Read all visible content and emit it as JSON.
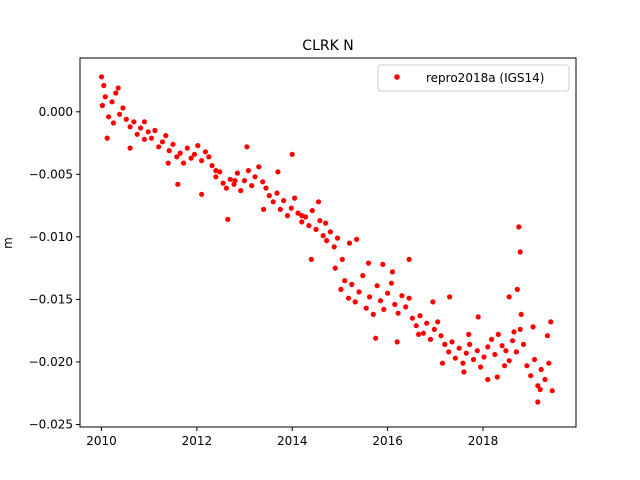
{
  "chart_data": {
    "type": "scatter",
    "title": "CLRK N",
    "xlabel": "",
    "ylabel": "m",
    "xlim": [
      2009.55,
      2019.95
    ],
    "ylim": [
      -0.0252,
      0.0043
    ],
    "xticks": [
      2010,
      2012,
      2014,
      2016,
      2018
    ],
    "xtick_labels": [
      "2010",
      "2012",
      "2014",
      "2016",
      "2018"
    ],
    "yticks": [
      0.0,
      -0.005,
      -0.01,
      -0.015,
      -0.02,
      -0.025
    ],
    "ytick_labels": [
      "0.000",
      "−0.005",
      "−0.010",
      "−0.015",
      "−0.020",
      "−0.025"
    ],
    "grid": false,
    "legend_position": "upper right",
    "series": [
      {
        "name": "repro2018a (IGS14)",
        "color": "#ff0000",
        "marker": "circle",
        "x": [
          2010.02,
          2010.08,
          2010.15,
          2010.22,
          2010.3,
          2010.38,
          2010.45,
          2010.52,
          2010.6,
          2010.68,
          2010.75,
          2010.82,
          2010.9,
          2010.98,
          2011.05,
          2011.12,
          2011.2,
          2011.28,
          2011.35,
          2011.42,
          2011.5,
          2011.58,
          2011.65,
          2011.72,
          2011.8,
          2011.88,
          2011.95,
          2012.02,
          2012.1,
          2012.18,
          2012.25,
          2012.32,
          2012.4,
          2012.48,
          2012.55,
          2012.62,
          2012.7,
          2012.78,
          2012.85,
          2012.92,
          2013.0,
          2013.08,
          2013.15,
          2013.22,
          2013.3,
          2013.38,
          2013.45,
          2013.52,
          2013.6,
          2013.68,
          2013.75,
          2013.82,
          2013.9,
          2013.98,
          2014.05,
          2014.12,
          2014.2,
          2014.28,
          2014.35,
          2014.42,
          2014.5,
          2014.58,
          2014.65,
          2014.72,
          2014.8,
          2014.88,
          2014.95,
          2015.02,
          2015.1,
          2015.18,
          2015.25,
          2015.32,
          2015.4,
          2015.48,
          2015.55,
          2015.62,
          2015.7,
          2015.78,
          2015.85,
          2015.92,
          2016.0,
          2016.08,
          2016.15,
          2016.22,
          2016.3,
          2016.38,
          2016.45,
          2016.52,
          2016.6,
          2016.68,
          2016.75,
          2016.82,
          2016.9,
          2016.98,
          2017.05,
          2017.12,
          2017.2,
          2017.28,
          2017.35,
          2017.42,
          2017.5,
          2017.58,
          2017.65,
          2017.72,
          2017.8,
          2017.88,
          2017.95,
          2018.02,
          2018.1,
          2018.18,
          2018.25,
          2018.32,
          2018.4,
          2018.48,
          2018.55,
          2018.62,
          2018.7,
          2018.78,
          2018.85,
          2018.92,
          2019.0,
          2019.08,
          2019.15,
          2019.22,
          2019.3,
          2019.38,
          2019.45,
          2010.05,
          2010.12,
          2010.35,
          2010.6,
          2010.9,
          2011.6,
          2012.1,
          2012.65,
          2013.05,
          2013.4,
          2014.0,
          2014.4,
          2014.55,
          2014.9,
          2015.05,
          2015.35,
          2015.75,
          2015.9,
          2016.1,
          2016.2,
          2016.45,
          2016.95,
          2017.3,
          2017.6,
          2017.9,
          2018.3,
          2018.55,
          2018.72,
          2018.75,
          2018.78,
          2018.8,
          2019.05,
          2019.15,
          2019.35,
          2019.42,
          2010.0,
          2010.25,
          2011.4,
          2012.4,
          2012.8,
          2013.7,
          2014.2,
          2014.7,
          2015.2,
          2015.6,
          2016.65,
          2017.15,
          2017.7,
          2018.1,
          2018.45,
          2018.65,
          2019.2
        ],
        "y": [
          0.0005,
          0.0012,
          -0.0004,
          0.0008,
          0.0015,
          -0.0002,
          0.0003,
          -0.0006,
          -0.0012,
          -0.0008,
          -0.0018,
          -0.0013,
          -0.0022,
          -0.0016,
          -0.0021,
          -0.0015,
          -0.0028,
          -0.0024,
          -0.0019,
          -0.0031,
          -0.0026,
          -0.0036,
          -0.0033,
          -0.0041,
          -0.0029,
          -0.0037,
          -0.0034,
          -0.0027,
          -0.0039,
          -0.0032,
          -0.0036,
          -0.0043,
          -0.0052,
          -0.0048,
          -0.0057,
          -0.0061,
          -0.0054,
          -0.0058,
          -0.0049,
          -0.0063,
          -0.0055,
          -0.0047,
          -0.0059,
          -0.0052,
          -0.0044,
          -0.0056,
          -0.0061,
          -0.0067,
          -0.0072,
          -0.0065,
          -0.0078,
          -0.0071,
          -0.0083,
          -0.0077,
          -0.0069,
          -0.0081,
          -0.0088,
          -0.0084,
          -0.0091,
          -0.0079,
          -0.0094,
          -0.0087,
          -0.0099,
          -0.0103,
          -0.0096,
          -0.0108,
          -0.0101,
          -0.0142,
          -0.0135,
          -0.0149,
          -0.0138,
          -0.0152,
          -0.0144,
          -0.0131,
          -0.0157,
          -0.0148,
          -0.0162,
          -0.0139,
          -0.0151,
          -0.0158,
          -0.0145,
          -0.0137,
          -0.0154,
          -0.0161,
          -0.0147,
          -0.0156,
          -0.0149,
          -0.0165,
          -0.0171,
          -0.0163,
          -0.0177,
          -0.0169,
          -0.0182,
          -0.0174,
          -0.0168,
          -0.0179,
          -0.0186,
          -0.0192,
          -0.0184,
          -0.0197,
          -0.0189,
          -0.0201,
          -0.0193,
          -0.0186,
          -0.0198,
          -0.0191,
          -0.0204,
          -0.0196,
          -0.0188,
          -0.0182,
          -0.0194,
          -0.0178,
          -0.0187,
          -0.0191,
          -0.0199,
          -0.0183,
          -0.0192,
          -0.0174,
          -0.0186,
          -0.0203,
          -0.0211,
          -0.0198,
          -0.0219,
          -0.0206,
          -0.0214,
          -0.0201,
          -0.0223,
          0.0021,
          -0.0021,
          0.0019,
          -0.0029,
          -0.0008,
          -0.0058,
          -0.0066,
          -0.0086,
          -0.0028,
          -0.0078,
          -0.0034,
          -0.0118,
          -0.0072,
          -0.0125,
          -0.0118,
          -0.0102,
          -0.0181,
          -0.0122,
          -0.0128,
          -0.0184,
          -0.0118,
          -0.0152,
          -0.0148,
          -0.0208,
          -0.0164,
          -0.0212,
          -0.0148,
          -0.0142,
          -0.0092,
          -0.0112,
          -0.0162,
          -0.0172,
          -0.0232,
          -0.0179,
          -0.0168,
          0.0028,
          -0.0009,
          -0.0041,
          -0.0047,
          -0.0055,
          -0.0048,
          -0.0083,
          -0.0089,
          -0.0105,
          -0.0121,
          -0.0178,
          -0.0201,
          -0.0178,
          -0.0214,
          -0.0203,
          -0.0176,
          -0.0222
        ]
      }
    ]
  }
}
